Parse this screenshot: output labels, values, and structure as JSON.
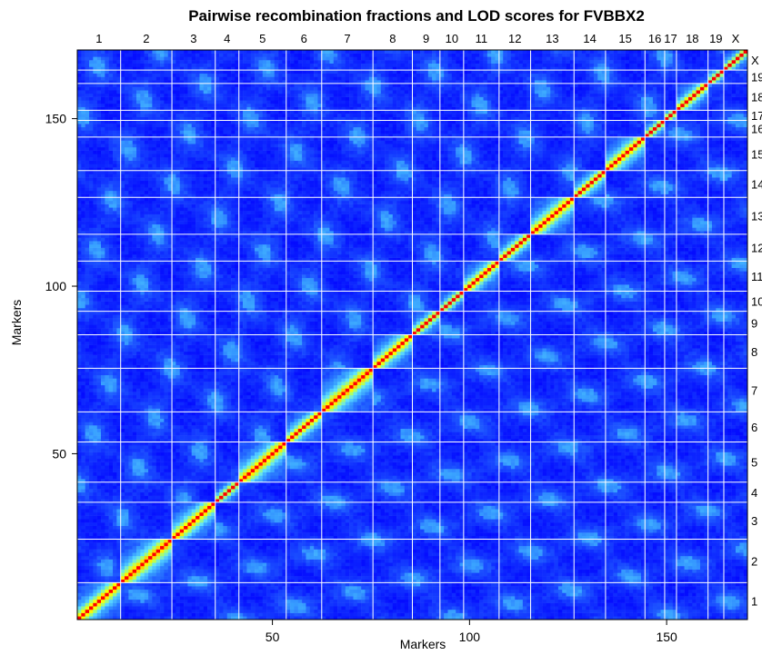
{
  "chart_data": {
    "type": "heatmap",
    "title": "Pairwise recombination fractions and LOD scores for FVBBX2",
    "xlabel": "Markers",
    "ylabel": "Markers",
    "n_markers": 170,
    "xlim": [
      0.5,
      170.5
    ],
    "ylim": [
      0.5,
      170.5
    ],
    "x_ticks": [
      50,
      100,
      150
    ],
    "y_ticks": [
      50,
      100,
      150
    ],
    "grid": true,
    "colormap": [
      "#0000ff",
      "#1a4cff",
      "#38a0ff",
      "#5fe2ff",
      "#aaff66",
      "#ffff00",
      "#ff9900",
      "#ff0000"
    ],
    "chromosomes": [
      {
        "name": "1",
        "start": 1,
        "end": 11
      },
      {
        "name": "2",
        "start": 12,
        "end": 24
      },
      {
        "name": "3",
        "start": 25,
        "end": 35
      },
      {
        "name": "4",
        "start": 36,
        "end": 41
      },
      {
        "name": "5",
        "start": 42,
        "end": 53
      },
      {
        "name": "6",
        "start": 54,
        "end": 62
      },
      {
        "name": "7",
        "start": 63,
        "end": 75
      },
      {
        "name": "8",
        "start": 76,
        "end": 85
      },
      {
        "name": "9",
        "start": 86,
        "end": 92
      },
      {
        "name": "10",
        "start": 93,
        "end": 98
      },
      {
        "name": "11",
        "start": 99,
        "end": 107
      },
      {
        "name": "12",
        "start": 108,
        "end": 115
      },
      {
        "name": "13",
        "start": 116,
        "end": 126
      },
      {
        "name": "14",
        "start": 127,
        "end": 134
      },
      {
        "name": "15",
        "start": 135,
        "end": 144
      },
      {
        "name": "16",
        "start": 145,
        "end": 149
      },
      {
        "name": "17",
        "start": 150,
        "end": 152
      },
      {
        "name": "18",
        "start": 153,
        "end": 160
      },
      {
        "name": "19",
        "start": 161,
        "end": 164
      },
      {
        "name": "X",
        "start": 165,
        "end": 170
      }
    ]
  }
}
